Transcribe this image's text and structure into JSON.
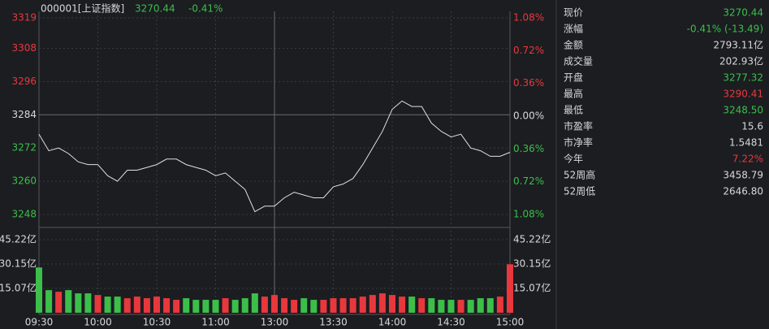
{
  "chart_data": {
    "type": "line",
    "title": "000001[上证指数]",
    "price": "3270.44",
    "change": "-0.41%",
    "categories": [
      "09:30",
      null,
      null,
      null,
      null,
      null,
      "10:00",
      null,
      null,
      null,
      null,
      null,
      "10:30",
      null,
      null,
      null,
      null,
      null,
      "11:00",
      null,
      null,
      null,
      null,
      null,
      "13:00",
      null,
      null,
      null,
      null,
      null,
      "13:30",
      null,
      null,
      null,
      null,
      null,
      "14:00",
      null,
      null,
      null,
      null,
      null,
      "14:30",
      null,
      null,
      null,
      null,
      null,
      "15:00"
    ],
    "series": [
      {
        "name": "上证指数",
        "color": "#e0e0e0",
        "values": [
          3277,
          3271,
          3272,
          3270,
          3267,
          3266,
          3266,
          3262,
          3260,
          3264,
          3264,
          3265,
          3266,
          3268,
          3268,
          3266,
          3265,
          3264,
          3262,
          3263,
          3260,
          3257,
          3249,
          3251,
          3251,
          3254,
          3256,
          3255,
          3254,
          3254,
          3258,
          3259,
          3261,
          3266,
          3272,
          3278,
          3286,
          3289,
          3287,
          3287,
          3281,
          3278,
          3276,
          3277,
          3272,
          3271,
          3269,
          3269,
          3270.44
        ]
      }
    ],
    "ylim": [
      3248,
      3319
    ],
    "yticks": [
      3248,
      3260,
      3272,
      3284,
      3296,
      3308,
      3319
    ],
    "y2lim": [
      -1.08,
      1.08
    ],
    "y2ticks": [
      {
        "value": -1.08,
        "label": "1.08%"
      },
      {
        "value": -0.72,
        "label": "0.72%"
      },
      {
        "value": -0.36,
        "label": "0.36%"
      },
      {
        "value": 0,
        "label": "0.00%"
      },
      {
        "value": 0.36,
        "label": "0.36%"
      },
      {
        "value": 0.72,
        "label": "0.72%"
      },
      {
        "value": 1.08,
        "label": "1.08%"
      }
    ],
    "volume": {
      "values": [
        28,
        14,
        13,
        14,
        12,
        12,
        11,
        10,
        10,
        9,
        10,
        9,
        10,
        9,
        8,
        9,
        8,
        8,
        8,
        9,
        8,
        9,
        12,
        10,
        11,
        9,
        8,
        9,
        8,
        8,
        9,
        9,
        9,
        10,
        11,
        12,
        11,
        10,
        10,
        9,
        9,
        8,
        8,
        8,
        8,
        9,
        9,
        10,
        30
      ],
      "ylim": [
        0,
        45.22
      ],
      "yticks": [
        {
          "value": 15.07,
          "label": "15.07亿"
        },
        {
          "value": 30.15,
          "label": "30.15亿"
        },
        {
          "value": 45.22,
          "label": "45.22亿"
        }
      ]
    },
    "grid": true
  },
  "quote_panel": {
    "rows": [
      {
        "label": "现价",
        "value": "3270.44",
        "color": "green"
      },
      {
        "label": "涨幅",
        "value": "-0.41% (-13.49)",
        "color": "green"
      },
      {
        "label": "金额",
        "value": "2793.11亿",
        "color": "white"
      },
      {
        "label": "成交量",
        "value": "202.93亿",
        "color": "white"
      },
      {
        "label": "开盘",
        "value": "3277.32",
        "color": "green"
      },
      {
        "label": "最高",
        "value": "3290.41",
        "color": "red"
      },
      {
        "label": "最低",
        "value": "3248.50",
        "color": "green"
      },
      {
        "label": "市盈率",
        "value": "15.6",
        "color": "white"
      },
      {
        "label": "市净率",
        "value": "1.5481",
        "color": "white"
      },
      {
        "label": "今年",
        "value": "7.22%",
        "color": "red"
      },
      {
        "label": "52周高",
        "value": "3458.79",
        "color": "white"
      },
      {
        "label": "52周低",
        "value": "2646.80",
        "color": "white"
      }
    ]
  }
}
